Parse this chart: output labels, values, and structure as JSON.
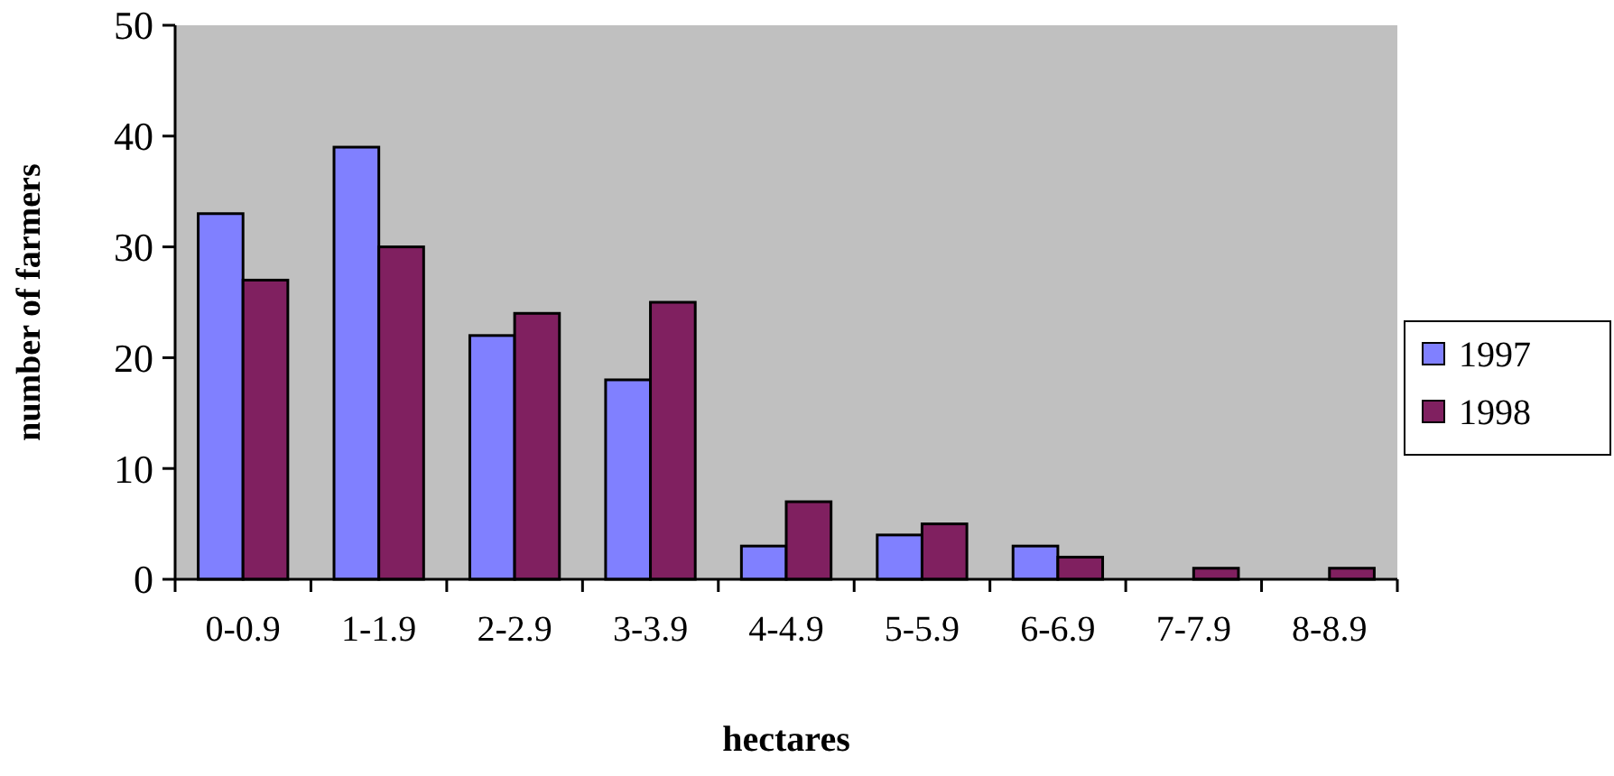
{
  "chart_data": {
    "type": "bar",
    "xlabel": "hectares",
    "ylabel": "number of farmers",
    "categories": [
      "0-0.9",
      "1-1.9",
      "2-2.9",
      "3-3.9",
      "4-4.9",
      "5-5.9",
      "6-6.9",
      "7-7.9",
      "8-8.9"
    ],
    "series": [
      {
        "name": "1997",
        "color": "#8080ff",
        "values": [
          33,
          39,
          22,
          18,
          3,
          4,
          3,
          0,
          0
        ]
      },
      {
        "name": "1998",
        "color": "#802060",
        "values": [
          27,
          30,
          24,
          25,
          7,
          5,
          2,
          1,
          1
        ]
      }
    ],
    "ylim": [
      0,
      50
    ],
    "yticks": [
      0,
      10,
      20,
      30,
      40,
      50
    ],
    "grid": false,
    "legend": "right"
  }
}
